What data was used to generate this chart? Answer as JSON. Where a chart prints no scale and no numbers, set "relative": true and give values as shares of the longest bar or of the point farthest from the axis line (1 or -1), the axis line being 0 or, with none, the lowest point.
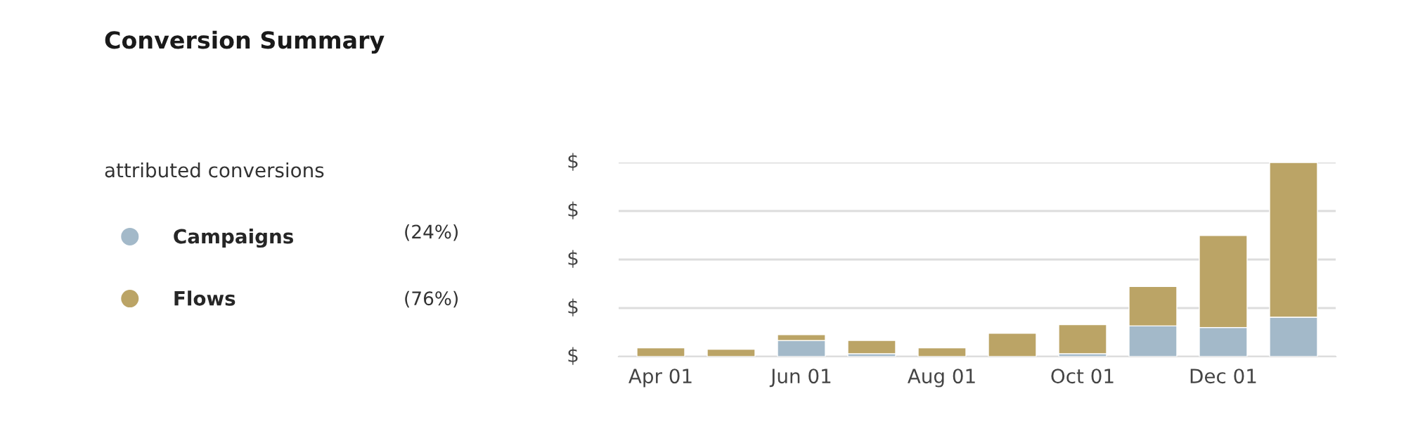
{
  "chart_data": {
    "type": "bar",
    "title": "Conversion Summary",
    "subtitle": "attributed conversions",
    "categories": [
      "Apr 01",
      null,
      "Jun 01",
      null,
      "Aug 01",
      null,
      "Oct 01",
      null,
      "Dec 01",
      null
    ],
    "stacked": true,
    "relative": true,
    "series": [
      {
        "name": "Campaigns",
        "color": "#a3b9c9",
        "values": [
          0,
          0,
          0.083,
          0.015,
          0,
          0,
          0.015,
          0.158,
          0.15,
          0.203
        ]
      },
      {
        "name": "Flows",
        "color": "#bba466",
        "values": [
          0.045,
          0.038,
          0.03,
          0.068,
          0.045,
          0.12,
          0.15,
          0.203,
          0.474,
          0.797
        ]
      }
    ],
    "grid": "y",
    "legend": "left",
    "annotations": [
      "(24%)",
      "(76%)",
      "$",
      "$",
      "$",
      "$",
      "$"
    ]
  }
}
